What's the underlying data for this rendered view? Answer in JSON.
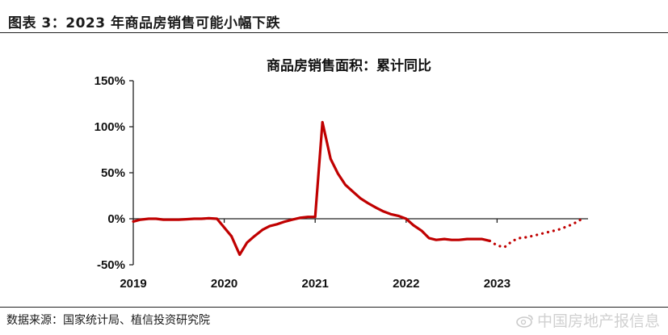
{
  "figure": {
    "title": "图表 3：2023 年商品房销售可能小幅下跌",
    "source": "数据来源：国家统计局、植信投资研究院",
    "watermark": "中国房地产报信息"
  },
  "colors": {
    "series": "#c00000",
    "axis": "#222222"
  },
  "chart_data": {
    "type": "line",
    "title": "商品房销售面积：累计同比",
    "xlabel": "",
    "ylabel": "",
    "ylim": [
      -50,
      150
    ],
    "yticks": [
      -50,
      0,
      50,
      100,
      150
    ],
    "ytick_labels": [
      "-50%",
      "0%",
      "50%",
      "100%",
      "150%"
    ],
    "xlim": [
      2019.0,
      2024.0
    ],
    "xtick_labels": [
      "2019",
      "2020",
      "2021",
      "2022",
      "2023"
    ],
    "xtick_positions": [
      2019,
      2020,
      2021,
      2022,
      2023
    ],
    "grid": false,
    "legend": "none",
    "series": [
      {
        "style": "solid",
        "points": [
          [
            2019.0,
            -3
          ],
          [
            2019.08,
            -1
          ],
          [
            2019.17,
            0
          ],
          [
            2019.25,
            0
          ],
          [
            2019.33,
            -1
          ],
          [
            2019.42,
            -1
          ],
          [
            2019.5,
            -1
          ],
          [
            2019.58,
            -0.5
          ],
          [
            2019.67,
            0
          ],
          [
            2019.75,
            0
          ],
          [
            2019.83,
            0.5
          ],
          [
            2019.92,
            0
          ],
          [
            2020.08,
            -19
          ],
          [
            2020.17,
            -39
          ],
          [
            2020.25,
            -26
          ],
          [
            2020.33,
            -19
          ],
          [
            2020.42,
            -12
          ],
          [
            2020.5,
            -8
          ],
          [
            2020.58,
            -6
          ],
          [
            2020.67,
            -3
          ],
          [
            2020.75,
            -1
          ],
          [
            2020.83,
            1
          ],
          [
            2020.92,
            2
          ],
          [
            2021.0,
            2
          ],
          [
            2021.08,
            105
          ],
          [
            2021.17,
            65
          ],
          [
            2021.25,
            49
          ],
          [
            2021.33,
            37
          ],
          [
            2021.42,
            29
          ],
          [
            2021.5,
            22
          ],
          [
            2021.58,
            17
          ],
          [
            2021.67,
            12
          ],
          [
            2021.75,
            8
          ],
          [
            2021.83,
            5
          ],
          [
            2021.92,
            3
          ],
          [
            2022.0,
            0
          ],
          [
            2022.08,
            -7
          ],
          [
            2022.17,
            -13
          ],
          [
            2022.25,
            -21
          ],
          [
            2022.33,
            -23
          ],
          [
            2022.42,
            -22
          ],
          [
            2022.5,
            -23
          ],
          [
            2022.58,
            -23
          ],
          [
            2022.67,
            -22
          ],
          [
            2022.75,
            -22
          ],
          [
            2022.83,
            -22
          ],
          [
            2022.92,
            -24
          ]
        ]
      },
      {
        "style": "dotted",
        "points": [
          [
            2022.92,
            -24
          ],
          [
            2023.0,
            -29
          ],
          [
            2023.08,
            -31
          ],
          [
            2023.17,
            -24
          ],
          [
            2023.25,
            -21
          ],
          [
            2023.33,
            -20
          ],
          [
            2023.42,
            -18
          ],
          [
            2023.5,
            -16
          ],
          [
            2023.58,
            -14
          ],
          [
            2023.67,
            -12
          ],
          [
            2023.75,
            -9
          ],
          [
            2023.83,
            -6
          ],
          [
            2023.92,
            -1
          ]
        ]
      }
    ]
  }
}
